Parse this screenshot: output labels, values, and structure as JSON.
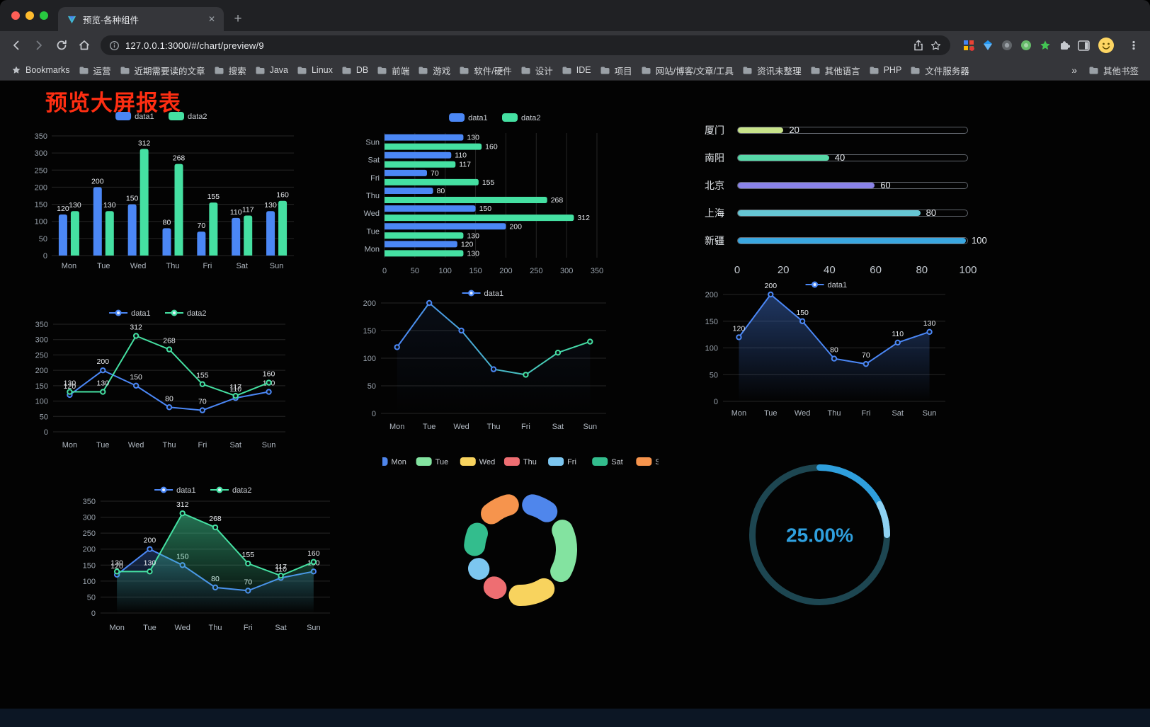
{
  "browser": {
    "tab": {
      "title": "预览-各种组件"
    },
    "icons": {
      "close": "✕",
      "plus": "+",
      "overflow": "»"
    },
    "url": "127.0.0.1:3000/#/chart/preview/9",
    "bookmarks_bar": {
      "label": "Bookmarks",
      "folders": [
        "运营",
        "近期需要读的文章",
        "搜索",
        "Java",
        "Linux",
        "DB",
        "前端",
        "游戏",
        "软件/硬件",
        "设计",
        "IDE",
        "项目",
        "网站/博客/文章/工具",
        "资讯未整理",
        "其他语言",
        "PHP",
        "文件服务器"
      ],
      "other_bookmarks": "其他书签"
    }
  },
  "page": {
    "title": "预览大屏报表",
    "title_color": "#fe2e12"
  },
  "palette": {
    "data1": "#4b87f5",
    "data2": "#45e0a2"
  },
  "chart_data": [
    {
      "id": "bar-grouped",
      "type": "bar",
      "legend_position": "top",
      "grid": true,
      "categories": [
        "Mon",
        "Tue",
        "Wed",
        "Thu",
        "Fri",
        "Sat",
        "Sun"
      ],
      "series": [
        {
          "name": "data1",
          "color": "#4b87f5",
          "values": [
            120,
            200,
            150,
            80,
            70,
            110,
            130
          ]
        },
        {
          "name": "data2",
          "color": "#45e0a2",
          "values": [
            130,
            130,
            312,
            268,
            155,
            117,
            160
          ]
        }
      ],
      "ylim": [
        0,
        350
      ],
      "ytick": 50
    },
    {
      "id": "bar-horizontal",
      "type": "bar",
      "orientation": "horizontal",
      "legend_position": "top",
      "grid": true,
      "categories": [
        "Mon",
        "Tue",
        "Wed",
        "Thu",
        "Fri",
        "Sat",
        "Sun"
      ],
      "series": [
        {
          "name": "data1",
          "color": "#4b87f5",
          "values": [
            120,
            200,
            150,
            80,
            70,
            110,
            130
          ]
        },
        {
          "name": "data2",
          "color": "#45e0a2",
          "values": [
            130,
            130,
            312,
            268,
            155,
            117,
            160
          ]
        }
      ],
      "xlim": [
        0,
        350
      ],
      "xtick": 50
    },
    {
      "id": "progress-list",
      "type": "bar",
      "orientation": "horizontal-progress",
      "items": [
        {
          "label": "厦门",
          "value": 20,
          "color": "#c8e38a"
        },
        {
          "label": "南阳",
          "value": 40,
          "color": "#57d8a8"
        },
        {
          "label": "北京",
          "value": 60,
          "color": "#8a83e8"
        },
        {
          "label": "上海",
          "value": 80,
          "color": "#66c6d4"
        },
        {
          "label": "新疆",
          "value": 100,
          "color": "#3aa7e0"
        }
      ],
      "xlim": [
        0,
        100
      ],
      "xticks": [
        0,
        20,
        40,
        60,
        80,
        100
      ]
    },
    {
      "id": "line-dual",
      "type": "line",
      "legend_position": "top",
      "show_labels": true,
      "categories": [
        "Mon",
        "Tue",
        "Wed",
        "Thu",
        "Fri",
        "Sat",
        "Sun"
      ],
      "series": [
        {
          "name": "data1",
          "color": "#4b87f5",
          "values": [
            120,
            200,
            150,
            80,
            70,
            110,
            130
          ]
        },
        {
          "name": "data2",
          "color": "#45e0a2",
          "values": [
            130,
            130,
            312,
            268,
            155,
            117,
            160
          ]
        }
      ],
      "ylim": [
        0,
        350
      ],
      "ytick": 50
    },
    {
      "id": "line-gradient",
      "type": "line",
      "legend_position": "top",
      "show_labels": false,
      "categories": [
        "Mon",
        "Tue",
        "Wed",
        "Thu",
        "Fri",
        "Sat",
        "Sun"
      ],
      "series": [
        {
          "name": "data1",
          "color": "#4b87f5",
          "gradient": [
            "#4b87f5",
            "#45e0a2"
          ],
          "area": 0.08,
          "values": [
            120,
            200,
            150,
            80,
            70,
            110,
            130
          ]
        }
      ],
      "ylim": [
        0,
        200
      ],
      "ytick": 50
    },
    {
      "id": "line-area",
      "type": "line",
      "legend_position": "top",
      "show_labels": true,
      "categories": [
        "Mon",
        "Tue",
        "Wed",
        "Thu",
        "Fri",
        "Sat",
        "Sun"
      ],
      "series": [
        {
          "name": "data1",
          "color": "#4b87f5",
          "area": 0.4,
          "values": [
            120,
            200,
            150,
            80,
            70,
            110,
            130
          ]
        }
      ],
      "ylim": [
        0,
        200
      ],
      "ytick": 50
    },
    {
      "id": "line-dual-area",
      "type": "line",
      "legend_position": "top",
      "show_labels": true,
      "categories": [
        "Mon",
        "Tue",
        "Wed",
        "Thu",
        "Fri",
        "Sat",
        "Sun"
      ],
      "series": [
        {
          "name": "data1",
          "color": "#4b87f5",
          "area": 0.3,
          "values": [
            120,
            200,
            150,
            80,
            70,
            110,
            130
          ]
        },
        {
          "name": "data2",
          "color": "#45e0a2",
          "area": 0.5,
          "values": [
            130,
            130,
            312,
            268,
            155,
            117,
            160
          ]
        }
      ],
      "ylim": [
        0,
        350
      ],
      "ytick": 50
    },
    {
      "id": "donut",
      "type": "pie",
      "legend_position": "top",
      "categories": [
        "Mon",
        "Tue",
        "Wed",
        "Thu",
        "Fri",
        "Sat",
        "Sun"
      ],
      "values": [
        120,
        200,
        150,
        80,
        70,
        110,
        130
      ],
      "colors": [
        "#4f86ec",
        "#83e3a0",
        "#f8d35e",
        "#ee6e72",
        "#7cc6f0",
        "#33bd8d",
        "#f6944d"
      ],
      "inner_radius": 50,
      "outer_radius": 80
    },
    {
      "id": "gauge",
      "type": "gauge",
      "value": 25,
      "display": "25.00%",
      "color": "#2f9fdd",
      "track_color": "#1d4651",
      "tip_color": "#8fd2f3"
    }
  ]
}
